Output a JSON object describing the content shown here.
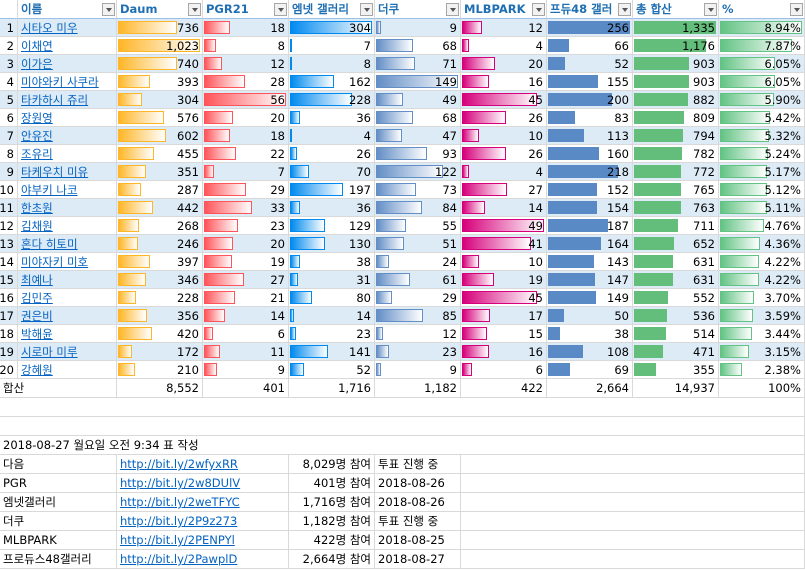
{
  "header": {
    "columns": [
      "이름",
      "Daum",
      "PGR21",
      "엠넷 갤러리",
      "더쿠",
      "MLBPARK",
      "프듀48 갤러",
      "총 합산",
      "%"
    ]
  },
  "table": {
    "bar_fills": [
      {
        "color": "#ffb628",
        "gradient": true
      },
      {
        "color": "#ff555a",
        "gradient": true
      },
      {
        "color": "#008aef",
        "gradient": true
      },
      {
        "color": "#638ec6",
        "gradient": true
      },
      {
        "color": "#d6007b",
        "gradient": true
      },
      {
        "color": "#5a8ac6",
        "gradient": false
      },
      {
        "color": "#63be7b",
        "gradient": false
      },
      {
        "color": "#63c384",
        "gradient": true
      }
    ],
    "rows": [
      {
        "rank": 1,
        "name": "시타오 미우",
        "values": [
          736,
          18,
          304,
          9,
          12,
          256,
          1335,
          8.94
        ],
        "labels": [
          "736",
          "18",
          "304",
          "9",
          "12",
          "256",
          "1,335",
          "8.94%"
        ]
      },
      {
        "rank": 2,
        "name": "이채연",
        "values": [
          1023,
          8,
          7,
          68,
          4,
          66,
          1176,
          7.87
        ],
        "labels": [
          "1,023",
          "8",
          "7",
          "68",
          "4",
          "66",
          "1,176",
          "7.87%"
        ]
      },
      {
        "rank": 3,
        "name": "이가은",
        "values": [
          740,
          12,
          8,
          71,
          20,
          52,
          903,
          6.05
        ],
        "labels": [
          "740",
          "12",
          "8",
          "71",
          "20",
          "52",
          "903",
          "6.05%"
        ]
      },
      {
        "rank": 4,
        "name": "미야와키 사쿠라",
        "values": [
          393,
          28,
          162,
          149,
          16,
          155,
          903,
          6.05
        ],
        "labels": [
          "393",
          "28",
          "162",
          "149",
          "16",
          "155",
          "903",
          "6.05%"
        ]
      },
      {
        "rank": 5,
        "name": "타카하시 쥬리",
        "values": [
          304,
          56,
          228,
          49,
          45,
          200,
          882,
          5.9
        ],
        "labels": [
          "304",
          "56",
          "228",
          "49",
          "45",
          "200",
          "882",
          "5.90%"
        ]
      },
      {
        "rank": 6,
        "name": "장원영",
        "values": [
          576,
          20,
          36,
          68,
          26,
          83,
          809,
          5.42
        ],
        "labels": [
          "576",
          "20",
          "36",
          "68",
          "26",
          "83",
          "809",
          "5.42%"
        ]
      },
      {
        "rank": 7,
        "name": "안유진",
        "values": [
          602,
          18,
          4,
          47,
          10,
          113,
          794,
          5.32
        ],
        "labels": [
          "602",
          "18",
          "4",
          "47",
          "10",
          "113",
          "794",
          "5.32%"
        ]
      },
      {
        "rank": 8,
        "name": "조유리",
        "values": [
          455,
          22,
          26,
          93,
          26,
          160,
          782,
          5.24
        ],
        "labels": [
          "455",
          "22",
          "26",
          "93",
          "26",
          "160",
          "782",
          "5.24%"
        ]
      },
      {
        "rank": 9,
        "name": "타케우치 미유",
        "values": [
          351,
          7,
          70,
          122,
          4,
          218,
          772,
          5.17
        ],
        "labels": [
          "351",
          "7",
          "70",
          "122",
          "4",
          "218",
          "772",
          "5.17%"
        ]
      },
      {
        "rank": 10,
        "name": "야부키 나코",
        "values": [
          287,
          29,
          197,
          73,
          27,
          152,
          765,
          5.12
        ],
        "labels": [
          "287",
          "29",
          "197",
          "73",
          "27",
          "152",
          "765",
          "5.12%"
        ]
      },
      {
        "rank": 11,
        "name": "한초원",
        "values": [
          442,
          33,
          36,
          84,
          14,
          154,
          763,
          5.11
        ],
        "labels": [
          "442",
          "33",
          "36",
          "84",
          "14",
          "154",
          "763",
          "5.11%"
        ]
      },
      {
        "rank": 12,
        "name": "김채원",
        "values": [
          268,
          23,
          129,
          55,
          49,
          187,
          711,
          4.76
        ],
        "labels": [
          "268",
          "23",
          "129",
          "55",
          "49",
          "187",
          "711",
          "4.76%"
        ]
      },
      {
        "rank": 13,
        "name": "혼다 히토미",
        "values": [
          246,
          20,
          130,
          51,
          41,
          164,
          652,
          4.36
        ],
        "labels": [
          "246",
          "20",
          "130",
          "51",
          "41",
          "164",
          "652",
          "4.36%"
        ]
      },
      {
        "rank": 14,
        "name": "미야자키 미호",
        "values": [
          397,
          19,
          38,
          24,
          10,
          143,
          631,
          4.22
        ],
        "labels": [
          "397",
          "19",
          "38",
          "24",
          "10",
          "143",
          "631",
          "4.22%"
        ]
      },
      {
        "rank": 15,
        "name": "최예나",
        "values": [
          346,
          27,
          31,
          61,
          19,
          147,
          631,
          4.22
        ],
        "labels": [
          "346",
          "27",
          "31",
          "61",
          "19",
          "147",
          "631",
          "4.22%"
        ]
      },
      {
        "rank": 16,
        "name": "김민주",
        "values": [
          228,
          21,
          80,
          29,
          45,
          149,
          552,
          3.7
        ],
        "labels": [
          "228",
          "21",
          "80",
          "29",
          "45",
          "149",
          "552",
          "3.70%"
        ]
      },
      {
        "rank": 17,
        "name": "권은비",
        "values": [
          356,
          14,
          14,
          85,
          17,
          50,
          536,
          3.59
        ],
        "labels": [
          "356",
          "14",
          "14",
          "85",
          "17",
          "50",
          "536",
          "3.59%"
        ]
      },
      {
        "rank": 18,
        "name": "박해윤",
        "values": [
          420,
          6,
          23,
          12,
          15,
          38,
          514,
          3.44
        ],
        "labels": [
          "420",
          "6",
          "23",
          "12",
          "15",
          "38",
          "514",
          "3.44%"
        ]
      },
      {
        "rank": 19,
        "name": "시로마 미루",
        "values": [
          172,
          11,
          141,
          23,
          16,
          108,
          471,
          3.15
        ],
        "labels": [
          "172",
          "11",
          "141",
          "23",
          "16",
          "108",
          "471",
          "3.15%"
        ]
      },
      {
        "rank": 20,
        "name": "강혜원",
        "values": [
          210,
          9,
          52,
          9,
          6,
          69,
          355,
          2.38
        ],
        "labels": [
          "210",
          "9",
          "52",
          "9",
          "6",
          "69",
          "355",
          "2.38%"
        ]
      }
    ],
    "total": [
      "합산",
      "8,552",
      "401",
      "1,716",
      "1,182",
      "422",
      "2,664",
      "14,937",
      "100%"
    ]
  },
  "note": "2018-08-27 월요일 오전 9:34 표 작성",
  "sources": [
    {
      "site": "다음",
      "url": "http://bit.ly/2wfyxRR",
      "count": "8,029명 참여",
      "status": "투표 진행 중"
    },
    {
      "site": "PGR",
      "url": "http://bit.ly/2w8DUlV",
      "count": "401명 참여",
      "status": "2018-08-26"
    },
    {
      "site": "엠넷갤러리",
      "url": "http://bit.ly/2weTFYC",
      "count": "1,716명 참여",
      "status": "2018-08-26"
    },
    {
      "site": "더쿠",
      "url": "http://bit.ly/2P9z273",
      "count": "1,182명 참여",
      "status": "투표 진행 중"
    },
    {
      "site": "MLBPARK",
      "url": "http://bit.ly/2PENPYl",
      "count": "422명 참여",
      "status": "2018-08-25"
    },
    {
      "site": "프로듀스48갤러리",
      "url": "http://bit.ly/2PawplD",
      "count": "2,664명 참여",
      "status": "2018-08-27"
    }
  ]
}
